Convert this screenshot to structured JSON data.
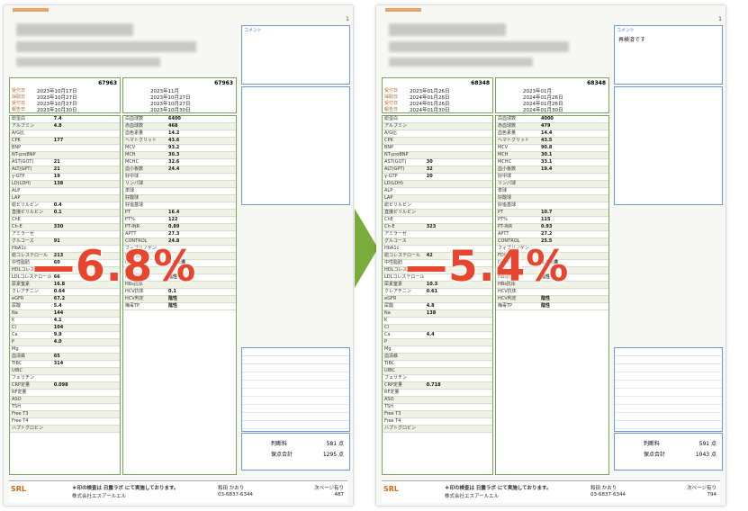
{
  "before": {
    "highlight": "6.8%",
    "patient_no": "67963",
    "dates": [
      "2023年10月17日",
      "2023年10月27日",
      "2023年10月27日",
      "2023年10月30日"
    ],
    "dates2": [
      "2023年11月",
      "2023年10月27日",
      "2023年10月27日",
      "2023年10月30日"
    ],
    "comment_label": "コメント",
    "comment_text": "",
    "rows_left": [
      {
        "n": "総蛋白",
        "v": "7.4"
      },
      {
        "n": "アルブミン",
        "v": "4.8"
      },
      {
        "n": "A/G比",
        "v": ""
      },
      {
        "n": "CPK",
        "v": "177"
      },
      {
        "n": "BNP",
        "v": ""
      },
      {
        "n": "NT-proBNP",
        "v": ""
      },
      {
        "n": "AST(GOT)",
        "v": "21"
      },
      {
        "n": "ALT(GPT)",
        "v": "21"
      },
      {
        "n": "γ-GTP",
        "v": "19"
      },
      {
        "n": "LD(LDH)",
        "v": "138"
      },
      {
        "n": "ALP",
        "v": ""
      },
      {
        "n": "LAP",
        "v": ""
      },
      {
        "n": "総ビリルビン",
        "v": "0.4"
      },
      {
        "n": "直接ビリルビン",
        "v": "0.1"
      },
      {
        "n": "ChE",
        "v": ""
      },
      {
        "n": "Ch-E",
        "v": "330"
      },
      {
        "n": "アミラーゼ",
        "v": ""
      },
      {
        "n": "グルコース",
        "v": "91"
      },
      {
        "n": "HbA1c",
        "v": ""
      },
      {
        "n": "総コレステロール",
        "v": "213"
      },
      {
        "n": "中性脂肪",
        "v": "60"
      },
      {
        "n": "HDLコレステロール",
        "v": "141"
      },
      {
        "n": "LDLコレステロール",
        "v": "66"
      },
      {
        "n": "尿素窒素",
        "v": "16.8"
      },
      {
        "n": "クレアチニン",
        "v": "0.64"
      },
      {
        "n": "eGFR",
        "v": "67.2"
      },
      {
        "n": "尿酸",
        "v": "5.4"
      },
      {
        "n": "Na",
        "v": "144"
      },
      {
        "n": "K",
        "v": "4.1"
      },
      {
        "n": "Cl",
        "v": "104"
      },
      {
        "n": "Ca",
        "v": "9.9"
      },
      {
        "n": "P",
        "v": "4.0"
      },
      {
        "n": "Mg",
        "v": ""
      },
      {
        "n": "血清鉄",
        "v": "65"
      },
      {
        "n": "TIBC",
        "v": "314"
      },
      {
        "n": "UIBC",
        "v": ""
      },
      {
        "n": "フェリチン",
        "v": ""
      },
      {
        "n": "CRP定量",
        "v": "0.098"
      },
      {
        "n": "RF定量",
        "v": ""
      },
      {
        "n": "ASO",
        "v": ""
      },
      {
        "n": "TSH",
        "v": ""
      },
      {
        "n": "Free T3",
        "v": ""
      },
      {
        "n": "Free T4",
        "v": ""
      },
      {
        "n": "ハプトグロビン",
        "v": ""
      }
    ],
    "rows_mid": [
      {
        "n": "白血球数",
        "v": "6400"
      },
      {
        "n": "赤血球数",
        "v": "468"
      },
      {
        "n": "血色素量",
        "v": "14.2"
      },
      {
        "n": "ヘマトクリット",
        "v": "43.6"
      },
      {
        "n": "MCV",
        "v": "93.2"
      },
      {
        "n": "MCH",
        "v": "30.3"
      },
      {
        "n": "MCHC",
        "v": "32.6"
      },
      {
        "n": "血小板数",
        "v": "24.4"
      },
      {
        "n": "好中球",
        "v": ""
      },
      {
        "n": "リンパ球",
        "v": ""
      },
      {
        "n": "単球",
        "v": ""
      },
      {
        "n": "好酸球",
        "v": ""
      },
      {
        "n": "好塩基球",
        "v": ""
      },
      {
        "n": "PT",
        "v": "16.4"
      },
      {
        "n": "PT%",
        "v": "122"
      },
      {
        "n": "PT-INR",
        "v": "0.89"
      },
      {
        "n": "APTT",
        "v": "27.3"
      },
      {
        "n": "CONTROL",
        "v": "24.8"
      },
      {
        "n": "フィブリノゲン",
        "v": ""
      },
      {
        "n": "FDP(血中)",
        "v": ""
      },
      {
        "n": "Dダイマー",
        "v": "0.5未満"
      },
      {
        "n": "ATⅢ",
        "v": ""
      },
      {
        "n": "HBs抗原",
        "v": "陰性"
      },
      {
        "n": "HBs抗体",
        "v": ""
      },
      {
        "n": "HCV抗体",
        "v": "0.1"
      },
      {
        "n": "HCV判定",
        "v": "陰性"
      },
      {
        "n": "梅毒TP",
        "v": "陰性"
      }
    ],
    "summary": {
      "label_a": "判断料",
      "value_a": "581 点",
      "label_b": "保点合計",
      "value_b": "1295 点"
    },
    "footer": {
      "brand": "SRL",
      "lab": "株式会社エスアールエル",
      "note": "＊印の検査は 日露ラボ にて実施しております。",
      "contact": "和田 かおり",
      "tel": "03-6837-6344",
      "page": "次ページ有り",
      "page_no": "487"
    }
  },
  "after": {
    "highlight": "5.4%",
    "patient_no": "68348",
    "dates": [
      "2023年01月26日",
      "2024年01月26日",
      "2024年01月26日",
      "2024年01月30日"
    ],
    "dates2": [
      "2023年01月",
      "2024年01月26日",
      "2024年01月26日",
      "2024年01月30日"
    ],
    "comment_label": "コメント",
    "comment_text": "再検済です",
    "rows_left": [
      {
        "n": "総蛋白",
        "v": ""
      },
      {
        "n": "アルブミン",
        "v": ""
      },
      {
        "n": "A/G比",
        "v": ""
      },
      {
        "n": "CPK",
        "v": ""
      },
      {
        "n": "BNP",
        "v": ""
      },
      {
        "n": "NT-proBNP",
        "v": ""
      },
      {
        "n": "AST(GOT)",
        "v": "30"
      },
      {
        "n": "ALT(GPT)",
        "v": "32"
      },
      {
        "n": "γ-GTP",
        "v": "20"
      },
      {
        "n": "LD(LDH)",
        "v": ""
      },
      {
        "n": "ALP",
        "v": ""
      },
      {
        "n": "LAP",
        "v": ""
      },
      {
        "n": "総ビリルビン",
        "v": ""
      },
      {
        "n": "直接ビリルビン",
        "v": ""
      },
      {
        "n": "ChE",
        "v": ""
      },
      {
        "n": "Ch-E",
        "v": "323"
      },
      {
        "n": "アミラーゼ",
        "v": ""
      },
      {
        "n": "グルコース",
        "v": ""
      },
      {
        "n": "HbA1c",
        "v": ""
      },
      {
        "n": "総コレステロール",
        "v": "42"
      },
      {
        "n": "中性脂肪",
        "v": ""
      },
      {
        "n": "HDLコレステロール",
        "v": "143"
      },
      {
        "n": "LDLコレステロール",
        "v": ""
      },
      {
        "n": "尿素窒素",
        "v": "10.3"
      },
      {
        "n": "クレアチニン",
        "v": "0.61"
      },
      {
        "n": "eGFR",
        "v": ""
      },
      {
        "n": "尿酸",
        "v": "4.8"
      },
      {
        "n": "Na",
        "v": "138"
      },
      {
        "n": "K",
        "v": ""
      },
      {
        "n": "Cl",
        "v": ""
      },
      {
        "n": "Ca",
        "v": "4.4"
      },
      {
        "n": "P",
        "v": ""
      },
      {
        "n": "Mg",
        "v": ""
      },
      {
        "n": "血清鉄",
        "v": ""
      },
      {
        "n": "TIBC",
        "v": ""
      },
      {
        "n": "UIBC",
        "v": ""
      },
      {
        "n": "フェリチン",
        "v": ""
      },
      {
        "n": "CRP定量",
        "v": "0.718"
      },
      {
        "n": "RF定量",
        "v": ""
      },
      {
        "n": "ASO",
        "v": ""
      },
      {
        "n": "TSH",
        "v": ""
      },
      {
        "n": "Free T3",
        "v": ""
      },
      {
        "n": "Free T4",
        "v": ""
      },
      {
        "n": "ハプトグロビン",
        "v": ""
      }
    ],
    "rows_mid": [
      {
        "n": "白血球数",
        "v": "4000"
      },
      {
        "n": "赤血球数",
        "v": "479"
      },
      {
        "n": "血色素量",
        "v": "14.4"
      },
      {
        "n": "ヘマトクリット",
        "v": "43.5"
      },
      {
        "n": "MCV",
        "v": "90.8"
      },
      {
        "n": "MCH",
        "v": "30.1"
      },
      {
        "n": "MCHC",
        "v": "33.1"
      },
      {
        "n": "血小板数",
        "v": "19.4"
      },
      {
        "n": "好中球",
        "v": ""
      },
      {
        "n": "リンパ球",
        "v": ""
      },
      {
        "n": "単球",
        "v": ""
      },
      {
        "n": "好酸球",
        "v": ""
      },
      {
        "n": "好塩基球",
        "v": ""
      },
      {
        "n": "PT",
        "v": "10.7"
      },
      {
        "n": "PT%",
        "v": "115"
      },
      {
        "n": "PT-INR",
        "v": "0.93"
      },
      {
        "n": "APTT",
        "v": "27.2"
      },
      {
        "n": "CONTROL",
        "v": "25.5"
      },
      {
        "n": "フィブリノゲン",
        "v": ""
      },
      {
        "n": "FDP(血中)",
        "v": ""
      },
      {
        "n": "Dダイマー",
        "v": "0.5未満"
      },
      {
        "n": "ATⅢ",
        "v": ""
      },
      {
        "n": "HBs抗原",
        "v": "陰性"
      },
      {
        "n": "HBs抗体",
        "v": ""
      },
      {
        "n": "HCV抗体",
        "v": ""
      },
      {
        "n": "HCV判定",
        "v": "陰性"
      },
      {
        "n": "梅毒TP",
        "v": "陰性"
      }
    ],
    "summary": {
      "label_a": "判断料",
      "value_a": "591 点",
      "label_b": "保点合計",
      "value_b": "1043 点"
    },
    "footer": {
      "brand": "SRL",
      "lab": "株式会社エスアールエル",
      "note": "＊印の検査は 日露ラボ にて実施しております。",
      "contact": "和田 かおり",
      "tel": "03-6837-6344",
      "page": "次ページ有り",
      "page_no": "794"
    }
  }
}
